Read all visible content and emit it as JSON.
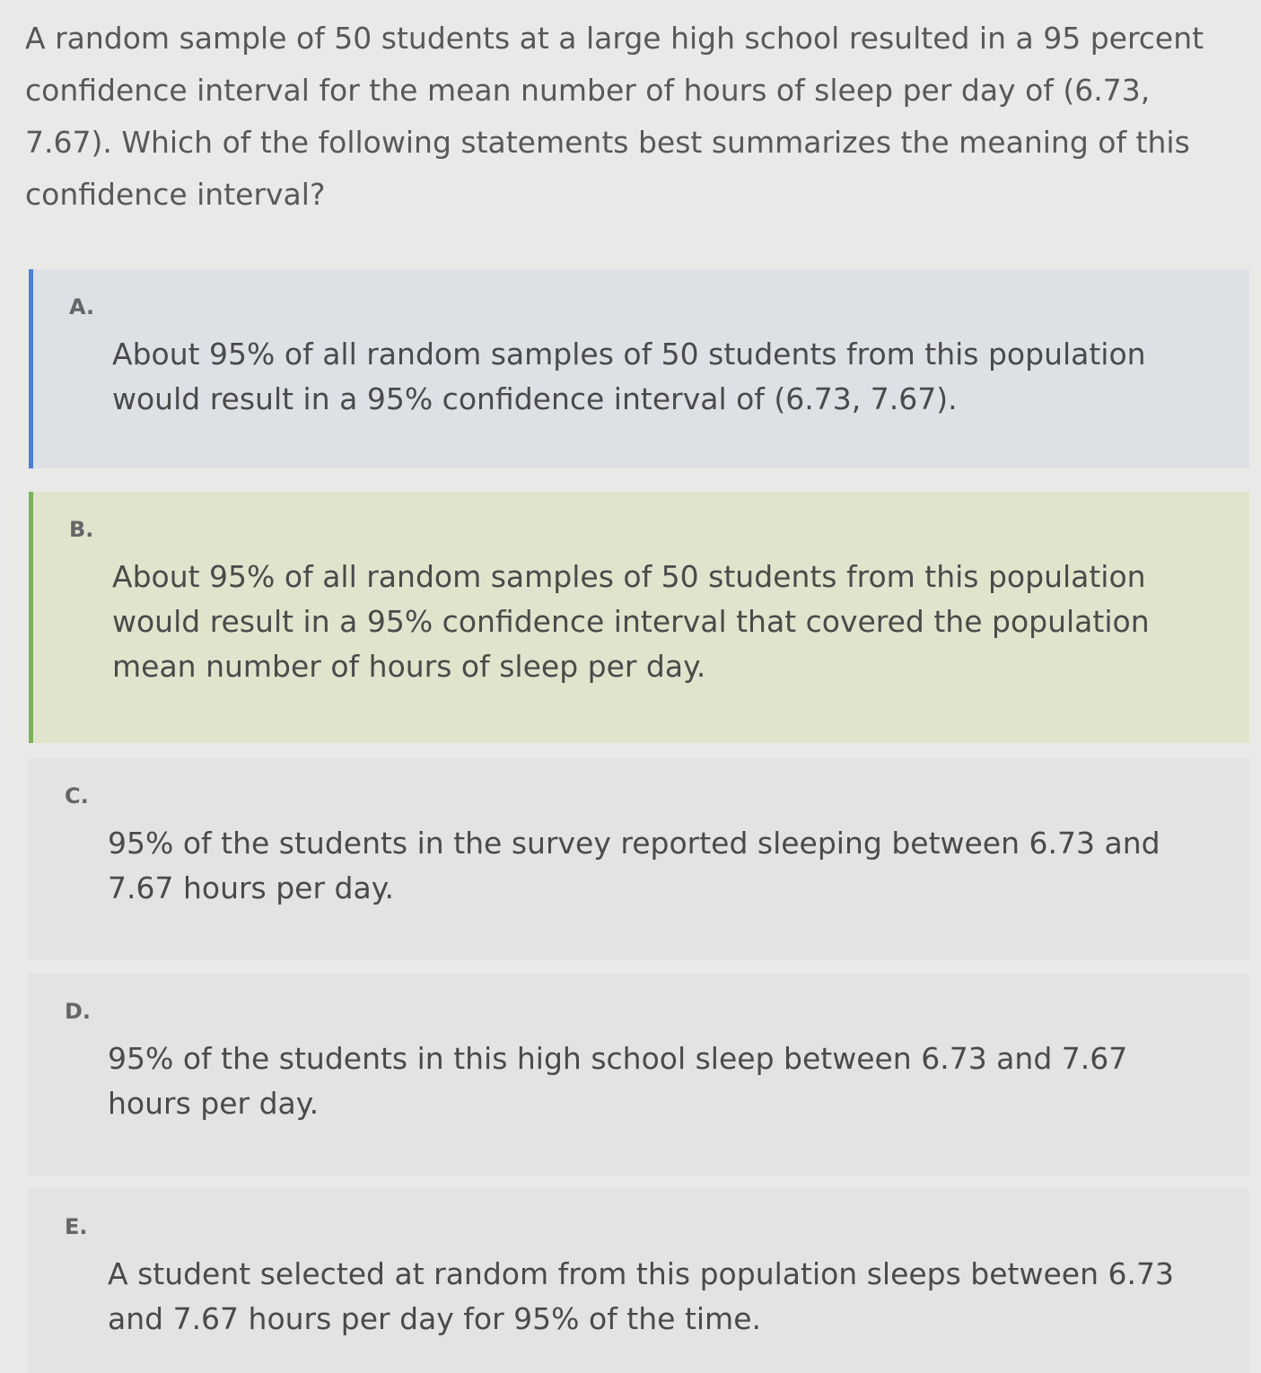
{
  "question": "A random sample of 50 students at a large high school resulted in a 95 percent confidence interval for the mean number of hours of sleep per day of (6.73, 7.67). Which of the following statements best summarizes the meaning of this confidence interval?",
  "options": [
    {
      "letter": "A.",
      "text": "About 95% of all random samples of 50 students from this population would result in a 95% confidence interval of (6.73, 7.67).",
      "state": "selected",
      "accent": "#4a7fd6"
    },
    {
      "letter": "B.",
      "text": "About 95% of all random samples of 50 students from this population would result in a 95% confidence interval that covered the population mean number of hours of sleep per day.",
      "state": "correct",
      "accent": "#7bb35a"
    },
    {
      "letter": "C.",
      "text": "95% of the students in the survey reported sleeping between 6.73 and 7.67 hours per day."
    },
    {
      "letter": "D.",
      "text": "95% of the students in this high school sleep between 6.73 and 7.67 hours per day."
    },
    {
      "letter": "E.",
      "text": "A student selected at random from this population sleeps between 6.73 and 7.67 hours per day for 95% of the time."
    }
  ]
}
